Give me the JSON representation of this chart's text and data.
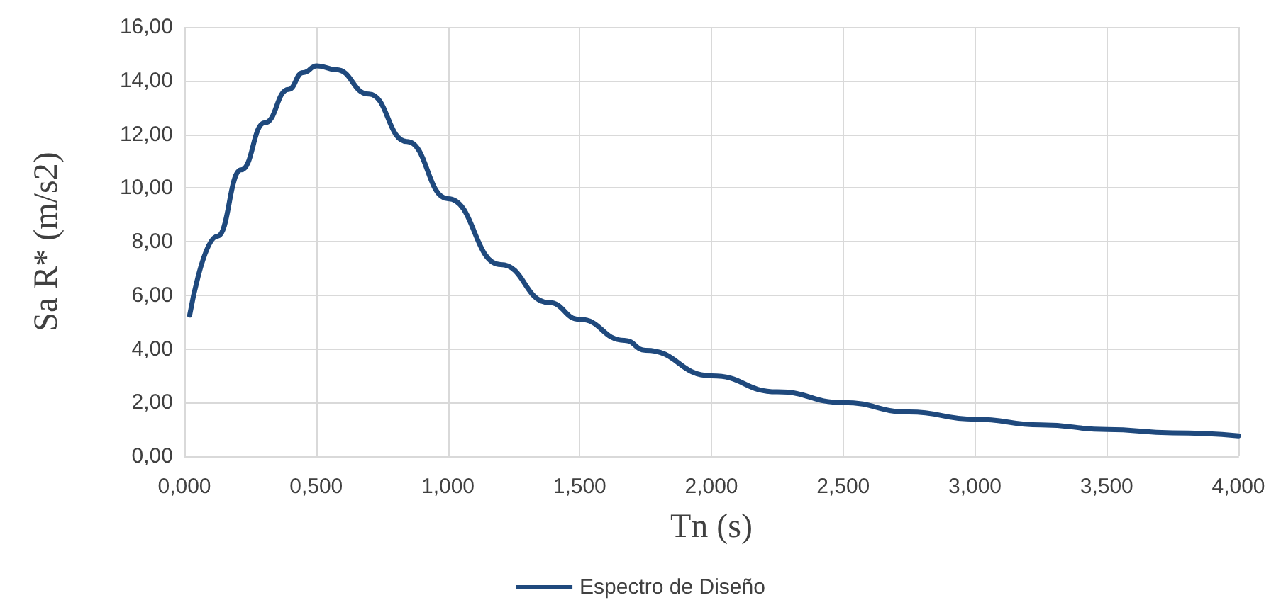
{
  "chart_data": {
    "type": "line",
    "xlabel": "Tn (s)",
    "ylabel": "Sa R* (m/s2)",
    "series": [
      {
        "name": "Espectro de Diseño",
        "color": "#1f497d",
        "x": [
          0.02,
          0.125,
          0.215,
          0.305,
          0.395,
          0.45,
          0.503,
          0.575,
          0.7,
          0.844,
          1.0,
          1.2,
          1.383,
          1.5,
          1.67,
          1.75,
          2.0,
          2.25,
          2.5,
          2.75,
          3.0,
          3.25,
          3.5,
          3.75,
          4.0
        ],
        "values": [
          5.26,
          8.2,
          10.67,
          12.43,
          13.67,
          14.3,
          14.55,
          14.41,
          13.5,
          11.73,
          9.6,
          7.14,
          5.73,
          5.1,
          4.32,
          3.95,
          3.0,
          2.4,
          2.0,
          1.65,
          1.38,
          1.17,
          1.0,
          0.87,
          0.76
        ]
      }
    ],
    "xlim": [
      0,
      4
    ],
    "xticks": [
      {
        "value": 0,
        "label": "0,000"
      },
      {
        "value": 0.5,
        "label": "0,500"
      },
      {
        "value": 1,
        "label": "1,000"
      },
      {
        "value": 1.5,
        "label": "1,500"
      },
      {
        "value": 2,
        "label": "2,000"
      },
      {
        "value": 2.5,
        "label": "2,500"
      },
      {
        "value": 3,
        "label": "3,000"
      },
      {
        "value": 3.5,
        "label": "3,500"
      },
      {
        "value": 4,
        "label": "4,000"
      }
    ],
    "ylim": [
      0,
      16
    ],
    "yticks": [
      {
        "value": 0,
        "label": "0,00"
      },
      {
        "value": 2,
        "label": "2,00"
      },
      {
        "value": 4,
        "label": "4,00"
      },
      {
        "value": 6,
        "label": "6,00"
      },
      {
        "value": 8,
        "label": "8,00"
      },
      {
        "value": 10,
        "label": "10,00"
      },
      {
        "value": 12,
        "label": "12,00"
      },
      {
        "value": 14,
        "label": "14,00"
      },
      {
        "value": 16,
        "label": "16,00"
      }
    ],
    "grid": true,
    "legend": "bottom",
    "marker": "none",
    "line_style": "solid"
  }
}
